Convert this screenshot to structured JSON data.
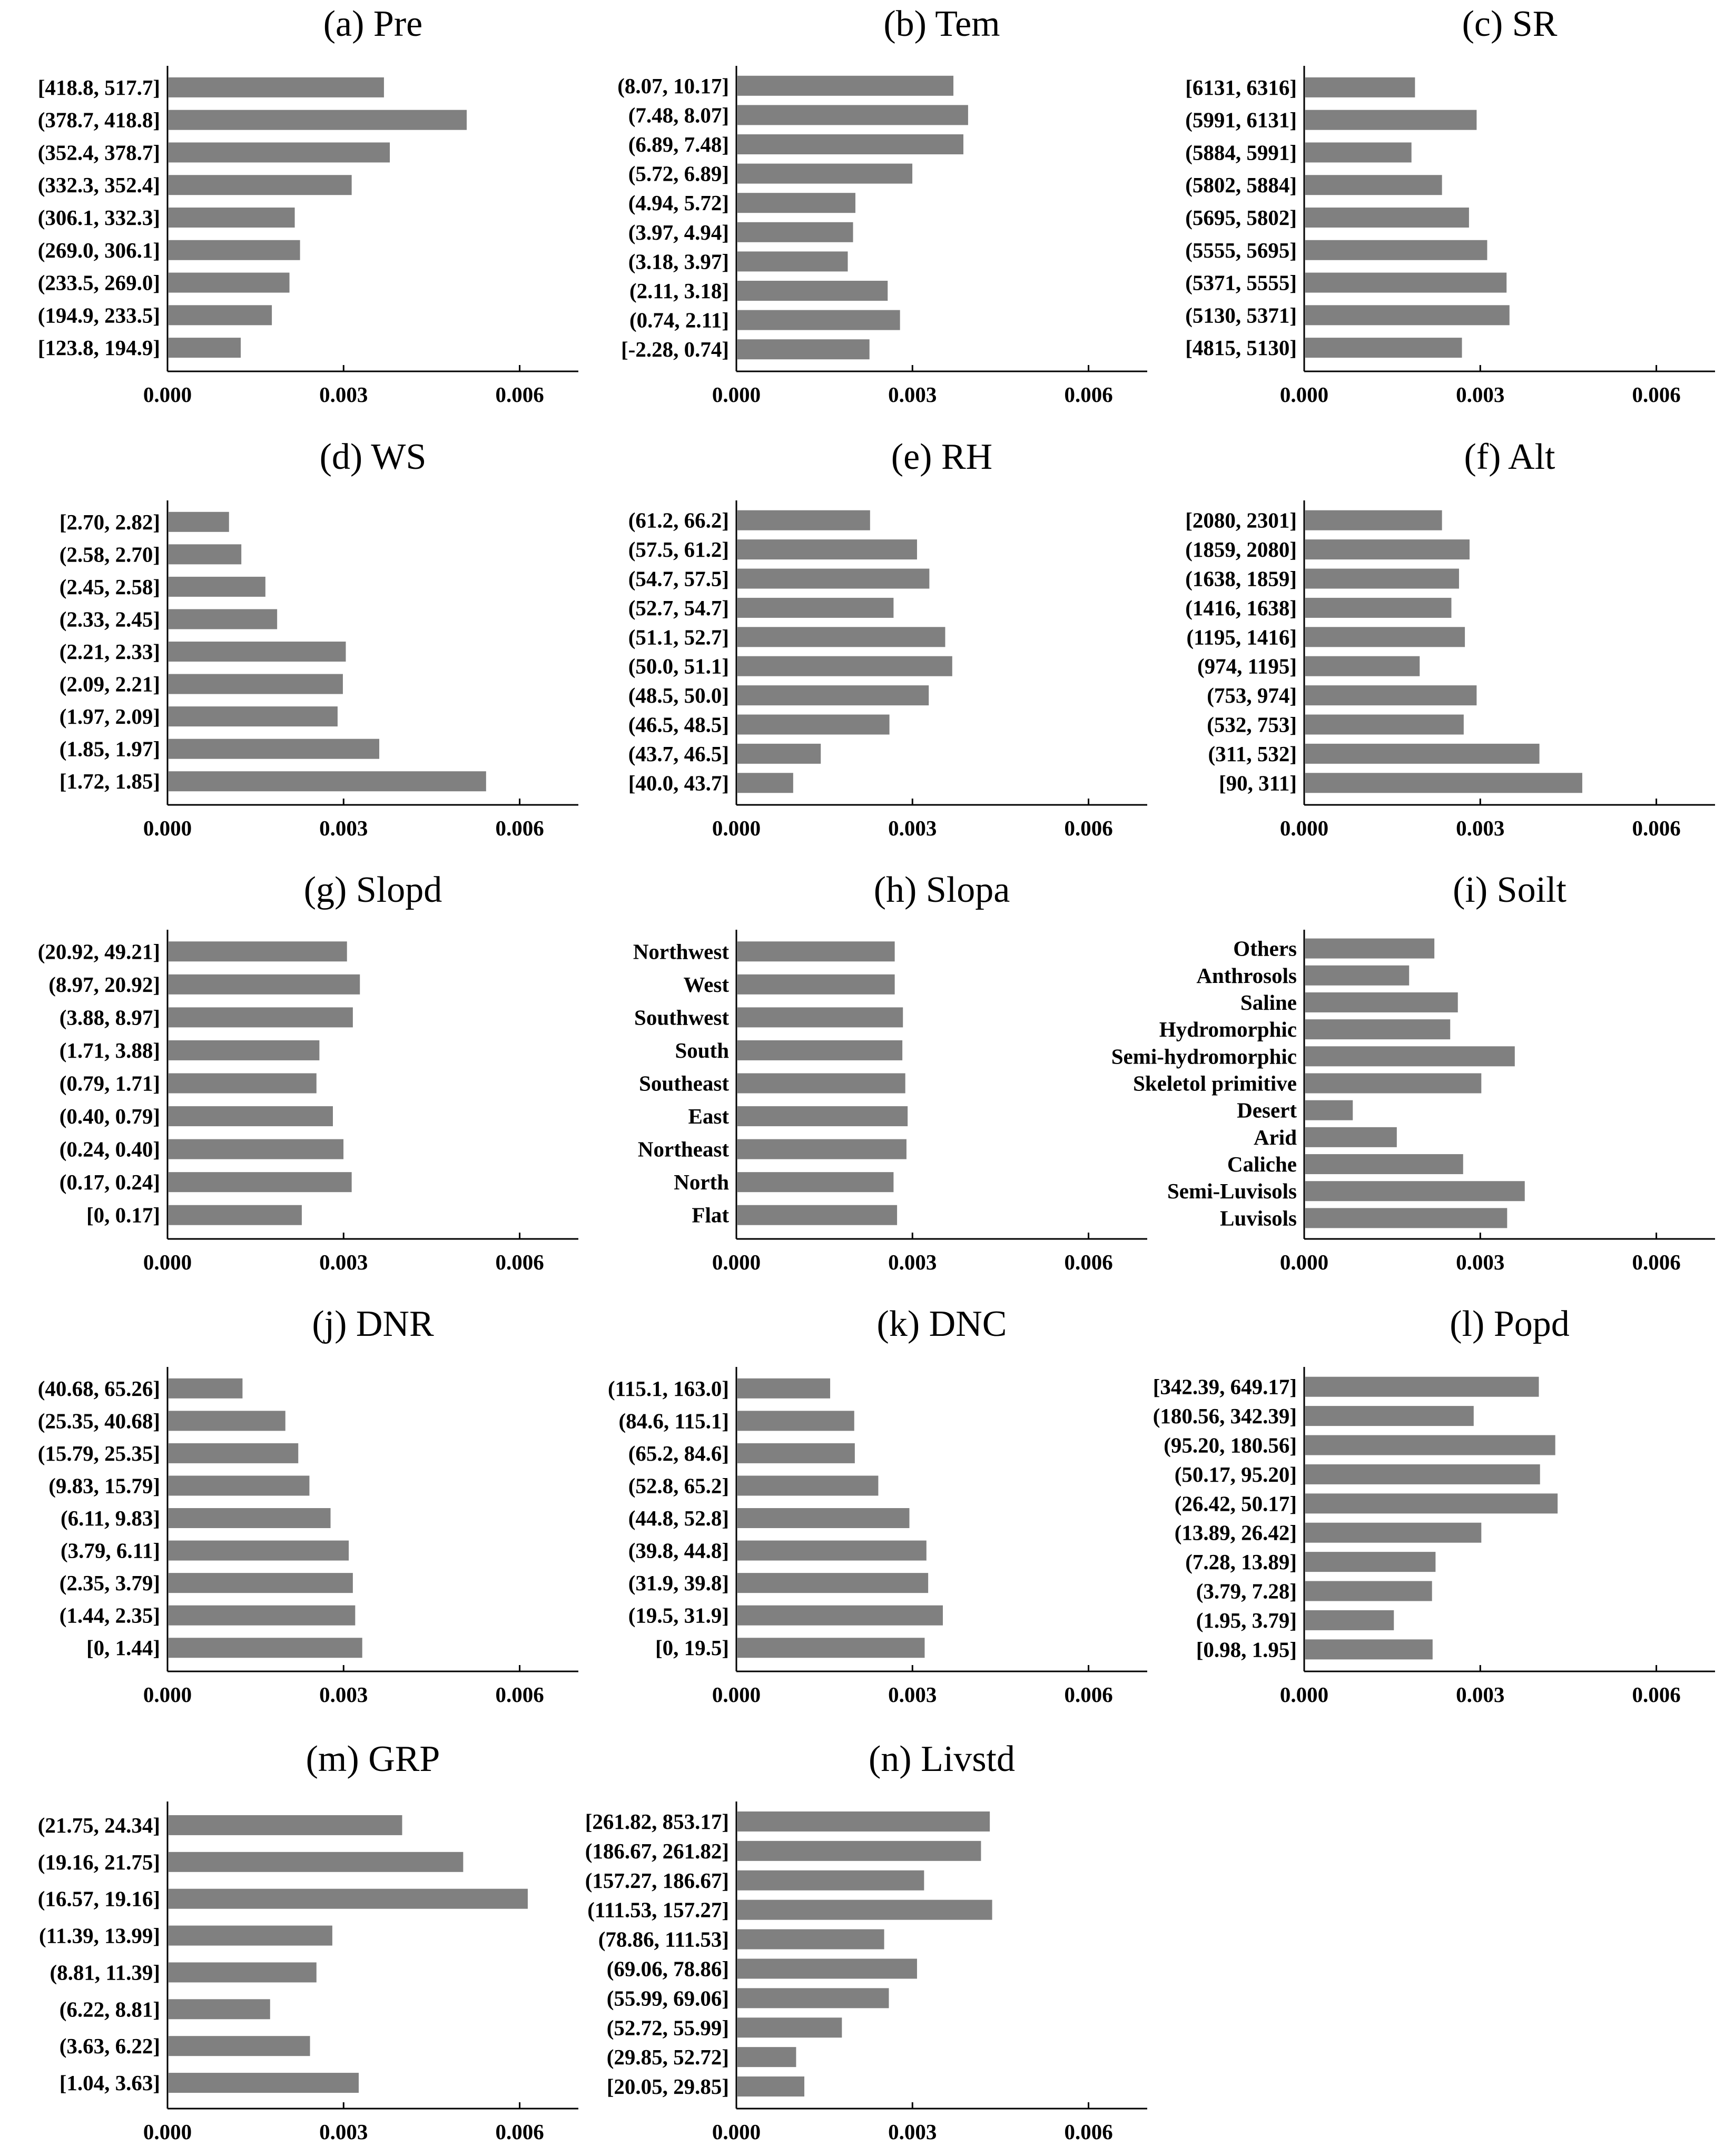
{
  "chart_data": [
    {
      "type": "bar",
      "orientation": "horizontal",
      "title": "(a) Pre",
      "categories": [
        "[418.8, 517.7]",
        "(378.7, 418.8]",
        "(352.4, 378.7]",
        "(332.3, 352.4]",
        "(306.1, 332.3]",
        "(269.0, 306.1]",
        "(233.5, 269.0]",
        "(194.9, 233.5]",
        "[123.8, 194.9]"
      ],
      "values": [
        0.00367,
        0.00508,
        0.00377,
        0.00312,
        0.00215,
        0.00224,
        0.00206,
        0.00176,
        0.00123
      ],
      "xticks": [
        "0.000",
        "0.003",
        "0.006"
      ],
      "xlim": [
        0,
        0.007
      ]
    },
    {
      "type": "bar",
      "orientation": "horizontal",
      "title": "(b) Tem",
      "categories": [
        "(8.07, 10.17]",
        "(7.48, 8.07]",
        "(6.89, 7.48]",
        "(5.72, 6.89]",
        "(4.94, 5.72]",
        "(3.97, 4.94]",
        "(3.18, 3.97]",
        "(2.11, 3.18]",
        "(0.74, 2.11]",
        "[-2.28, 0.74]"
      ],
      "values": [
        0.00368,
        0.00393,
        0.00385,
        0.00298,
        0.00201,
        0.00197,
        0.00188,
        0.00256,
        0.00277,
        0.00225
      ],
      "xticks": [
        "0.000",
        "0.003",
        "0.006"
      ],
      "xlim": [
        0,
        0.007
      ]
    },
    {
      "type": "bar",
      "orientation": "horizontal",
      "title": "(c) SR",
      "categories": [
        "[6131, 6316]",
        "(5991, 6131]",
        "(5884, 5991]",
        "(5802, 5884]",
        "(5695, 5802]",
        "(5555, 5695]",
        "(5371, 5555]",
        "(5130, 5371]",
        "[4815, 5130]"
      ],
      "values": [
        0.00187,
        0.00292,
        0.00181,
        0.00233,
        0.00279,
        0.0031,
        0.00343,
        0.00348,
        0.00267
      ],
      "xticks": [
        "0.000",
        "0.003",
        "0.006"
      ],
      "xlim": [
        0,
        0.007
      ]
    },
    {
      "type": "bar",
      "orientation": "horizontal",
      "title": "(d) WS",
      "categories": [
        "[2.70, 2.82]",
        "(2.58, 2.70]",
        "(2.45, 2.58]",
        "(2.33, 2.45]",
        "(2.21, 2.33]",
        "(2.09, 2.21]",
        "(1.97, 2.09]",
        "(1.85, 1.97]",
        "[1.72, 1.85]"
      ],
      "values": [
        0.00103,
        0.00124,
        0.00165,
        0.00185,
        0.00302,
        0.00297,
        0.00288,
        0.00359,
        0.00541
      ],
      "xticks": [
        "0.000",
        "0.003",
        "0.006"
      ],
      "xlim": [
        0,
        0.007
      ]
    },
    {
      "type": "bar",
      "orientation": "horizontal",
      "title": "(e) RH",
      "categories": [
        "(61.2,  66.2]",
        "(57.5,  61.2]",
        "(54.7,  57.5]",
        "(52.7,  54.7]",
        "(51.1,  52.7]",
        "(50.0,  51.1]",
        "(48.5, 50.0]",
        "(46.5, 48.5]",
        "(43.7, 46.5]",
        "[40.0, 43.7]"
      ],
      "values": [
        0.00226,
        0.00306,
        0.00327,
        0.00266,
        0.00354,
        0.00366,
        0.00326,
        0.00259,
        0.00142,
        0.00095
      ],
      "xticks": [
        "0.000",
        "0.003",
        "0.006"
      ],
      "xlim": [
        0,
        0.007
      ]
    },
    {
      "type": "bar",
      "orientation": "horizontal",
      "title": "(f) Alt",
      "categories": [
        "[2080, 2301]",
        "(1859, 2080]",
        "(1638, 1859]",
        "(1416, 1638]",
        "(1195, 1416]",
        "(974, 1195]",
        "(753, 974]",
        "(532, 753]",
        "(311, 532]",
        "[90, 311]"
      ],
      "values": [
        0.00233,
        0.0028,
        0.00262,
        0.00249,
        0.00272,
        0.00195,
        0.00292,
        0.0027,
        0.00399,
        0.00472
      ],
      "xticks": [
        "0.000",
        "0.003",
        "0.006"
      ],
      "xlim": [
        0,
        0.007
      ]
    },
    {
      "type": "bar",
      "orientation": "horizontal",
      "title": "(g) Slopd",
      "categories": [
        "(20.92, 49.21]",
        "(8.97, 20.92]",
        "(3.88, 8.97]",
        "(1.71, 3.88]",
        "(0.79, 1.71]",
        "(0.40, 0.79]",
        "(0.24, 0.40]",
        "(0.17, 0.24]",
        "[0, 0.17]"
      ],
      "values": [
        0.00304,
        0.00326,
        0.00314,
        0.00257,
        0.00252,
        0.0028,
        0.00298,
        0.00312,
        0.00227
      ],
      "xticks": [
        "0.000",
        "0.003",
        "0.006"
      ],
      "xlim": [
        0,
        0.007
      ]
    },
    {
      "type": "bar",
      "orientation": "horizontal",
      "title": "(h) Slopa",
      "categories": [
        "Northwest",
        "West",
        "Southwest",
        "South",
        "Southeast",
        "East",
        "Northeast",
        "North",
        "Flat"
      ],
      "values": [
        0.00268,
        0.00268,
        0.00282,
        0.00281,
        0.00286,
        0.0029,
        0.00288,
        0.00266,
        0.00272
      ],
      "xticks": [
        "0.000",
        "0.003",
        "0.006"
      ],
      "xlim": [
        0,
        0.007
      ]
    },
    {
      "type": "bar",
      "orientation": "horizontal",
      "title": "(i) Soilt",
      "categories": [
        "Others",
        "Anthrosols",
        "Saline",
        "Hydromorphic",
        "Semi-hydromorphic",
        "Skeletol primitive",
        "Desert",
        "Arid",
        "Caliche",
        "Semi-Luvisols",
        "Luvisols"
      ],
      "values": [
        0.0022,
        0.00177,
        0.0026,
        0.00247,
        0.00357,
        0.003,
        0.00081,
        0.00156,
        0.00269,
        0.00374,
        0.00344
      ],
      "xticks": [
        "0.000",
        "0.003",
        "0.006"
      ],
      "xlim": [
        0,
        0.007
      ]
    },
    {
      "type": "bar",
      "orientation": "horizontal",
      "title": "(j) DNR",
      "categories": [
        "(40.68, 65.26]",
        "(25.35, 40.68]",
        "(15.79, 25.35]",
        "(9.83, 15.79]",
        "(6.11, 9.83]",
        "(3.79, 6.11]",
        "(2.35, 3.79]",
        "(1.44, 2.35]",
        "[0, 1.44]"
      ],
      "values": [
        0.00126,
        0.00199,
        0.00221,
        0.0024,
        0.00276,
        0.00307,
        0.00314,
        0.00318,
        0.0033
      ],
      "xticks": [
        "0.000",
        "0.003",
        "0.006"
      ],
      "xlim": [
        0,
        0.007
      ]
    },
    {
      "type": "bar",
      "orientation": "horizontal",
      "title": "(k) DNC",
      "categories": [
        "(115.1, 163.0]",
        "(84.6, 115.1]",
        "(65.2, 84.6]",
        "(52.8, 65.2]",
        "(44.8, 52.8]",
        "(39.8, 44.8]",
        "(31.9, 39.8]",
        "(19.5, 31.9]",
        "[0, 19.5]"
      ],
      "values": [
        0.00158,
        0.00199,
        0.002,
        0.0024,
        0.00293,
        0.00322,
        0.00325,
        0.0035,
        0.00319
      ],
      "xticks": [
        "0.000",
        "0.003",
        "0.006"
      ],
      "xlim": [
        0,
        0.007
      ]
    },
    {
      "type": "bar",
      "orientation": "horizontal",
      "title": "(l) Popd",
      "categories": [
        "[342.39, 649.17]",
        "(180.56, 342.39]",
        "(95.20, 180.56]",
        "(50.17, 95.20]",
        "(26.42, 50.17]",
        "(13.89, 26.42]",
        "(7.28, 13.89]",
        "(3.79, 7.28]",
        "(1.95, 3.79]",
        "[0.98, 1.95]"
      ],
      "values": [
        0.00398,
        0.00287,
        0.00426,
        0.004,
        0.0043,
        0.003,
        0.00222,
        0.00216,
        0.00151,
        0.00217
      ],
      "xticks": [
        "0.000",
        "0.003",
        "0.006"
      ],
      "xlim": [
        0,
        0.007
      ]
    },
    {
      "type": "bar",
      "orientation": "horizontal",
      "title": "(m) GRP",
      "categories": [
        "(21.75, 24.34]",
        "(19.16, 21.75]",
        "(16.57, 19.16]",
        "(11.39, 13.99]",
        "(8.81, 11.39]",
        "(6.22, 8.81]",
        "(3.63, 6.22]",
        "[1.04, 3.63]"
      ],
      "values": [
        0.00398,
        0.00502,
        0.00612,
        0.00279,
        0.00252,
        0.00173,
        0.00241,
        0.00324
      ],
      "xticks": [
        "0.000",
        "0.003",
        "0.006"
      ],
      "xlim": [
        0,
        0.007
      ]
    },
    {
      "type": "bar",
      "orientation": "horizontal",
      "title": "(n) Livstd",
      "categories": [
        "[261.82, 853.17]",
        "(186.67, 261.82]",
        "(157.27, 186.67]",
        "(111.53, 157.27]",
        "(78.86, 111.53]",
        "(69.06, 78.86]",
        "(55.99, 69.06]",
        "(52.72, 55.99]",
        "(29.85, 52.72]",
        "[20.05, 29.85]"
      ],
      "values": [
        0.0043,
        0.00415,
        0.00318,
        0.00434,
        0.0025,
        0.00306,
        0.00258,
        0.00178,
        0.001,
        0.00114
      ],
      "xticks": [
        "0.000",
        "0.003",
        "0.006"
      ],
      "xlim": [
        0,
        0.007
      ]
    }
  ]
}
